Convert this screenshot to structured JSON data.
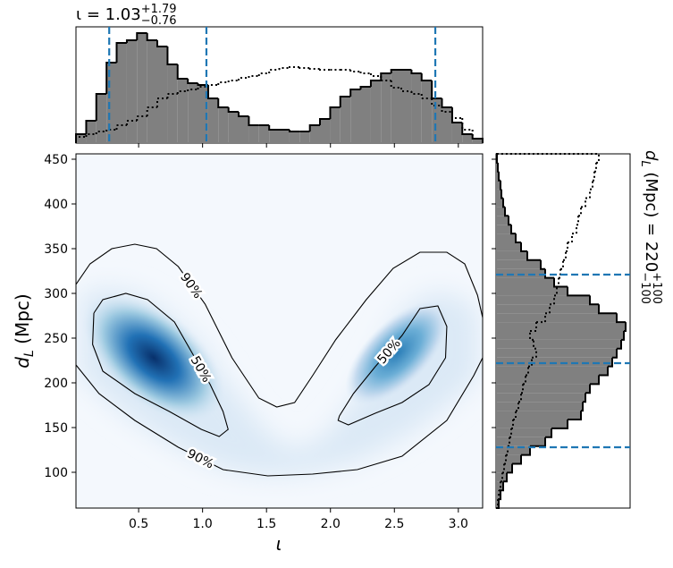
{
  "chart_data": {
    "type": "corner",
    "title": {
      "text": "ι = 1.03",
      "sup": "+1.79",
      "sub": "−0.76"
    },
    "side_title": {
      "text": "d",
      "sub_var": "L",
      "rest": " (Mpc) = 220",
      "sup": "+100",
      "sub": "−100"
    },
    "xlabel": "ι",
    "ylabel": {
      "text": "d",
      "sub": "L",
      "rest": " (Mpc)"
    },
    "xlim": [
      0.01,
      3.19
    ],
    "ylim": [
      60,
      456
    ],
    "xticks": [
      0.5,
      {
        "value": 1,
        "label": "1.0"
      },
      1.5,
      {
        "value": 2,
        "label": "2.0"
      },
      2.5,
      {
        "value": 3,
        "label": "3.0"
      }
    ],
    "yticks": [
      100,
      150,
      200,
      250,
      300,
      350,
      400,
      450
    ],
    "line_color": "#1f77b4",
    "contours": [
      {
        "label": "90%",
        "x": [
          0.01,
          0.12,
          0.29,
          0.47,
          0.64,
          0.81,
          1.02,
          1.23,
          1.44,
          1.58,
          1.72,
          1.86,
          2.04,
          2.28,
          2.49,
          2.7,
          2.91,
          3.05,
          3.15,
          3.19
        ],
        "y": [
          310,
          333,
          350,
          355,
          350,
          330,
          288,
          228,
          183,
          173,
          178,
          208,
          248,
          293,
          328,
          346,
          346,
          333,
          298,
          273
        ]
      },
      {
        "label": "90%",
        "x": [
          0.01,
          0.19,
          0.47,
          0.81,
          1.16,
          1.51,
          1.86,
          2.21,
          2.56,
          2.91,
          3.12,
          3.19
        ],
        "y": [
          220,
          188,
          158,
          128,
          103,
          96,
          98,
          103,
          118,
          158,
          208,
          228
        ]
      },
      {
        "label": "50%",
        "x": [
          0.15,
          0.22,
          0.4,
          0.57,
          0.78,
          0.92,
          1.06,
          1.16,
          1.2,
          1.13,
          0.99,
          0.74,
          0.47,
          0.22,
          0.14,
          0.15
        ],
        "y": [
          278,
          293,
          300,
          293,
          268,
          233,
          198,
          168,
          148,
          140,
          148,
          168,
          188,
          213,
          243,
          278
        ]
      },
      {
        "label": "50%",
        "x": [
          2.07,
          2.18,
          2.35,
          2.56,
          2.7,
          2.84,
          2.91,
          2.9,
          2.77,
          2.56,
          2.35,
          2.14,
          2.06,
          2.07
        ],
        "y": [
          163,
          188,
          218,
          253,
          283,
          286,
          263,
          228,
          198,
          178,
          166,
          153,
          158,
          163
        ]
      }
    ],
    "top_hist": {
      "ylim": [
        0,
        130
      ],
      "color": "#808080",
      "bins": [
        0.01,
        0.09,
        0.169,
        0.249,
        0.328,
        0.408,
        0.487,
        0.567,
        0.646,
        0.726,
        0.805,
        0.885,
        0.964,
        1.044,
        1.123,
        1.203,
        1.282,
        1.362,
        1.441,
        1.521,
        1.6,
        1.68,
        1.759,
        1.839,
        1.918,
        1.998,
        2.077,
        2.157,
        2.236,
        2.316,
        2.395,
        2.475,
        2.554,
        2.634,
        2.713,
        2.793,
        2.872,
        2.952,
        3.031,
        3.111,
        3.19
      ],
      "values": [
        10,
        25,
        55,
        90,
        112,
        115,
        123,
        115,
        108,
        88,
        72,
        67,
        65,
        50,
        40,
        35,
        30,
        20,
        20,
        15,
        15,
        13,
        13,
        20,
        27,
        40,
        52,
        60,
        63,
        70,
        78,
        82,
        82,
        78,
        70,
        50,
        40,
        23,
        10,
        5
      ],
      "dotted": [
        7,
        10,
        13,
        15,
        20,
        25,
        30,
        40,
        50,
        55,
        58,
        60,
        63,
        65,
        68,
        70,
        73,
        75,
        78,
        82,
        84,
        85,
        84,
        83,
        82,
        82,
        82,
        80,
        78,
        75,
        70,
        62,
        58,
        55,
        50,
        42,
        35,
        28,
        15,
        5
      ],
      "quantiles": [
        0.27,
        1.03,
        2.82
      ]
    },
    "right_hist": {
      "xlim": [
        0,
        150
      ],
      "color": "#808080",
      "bins": [
        60,
        69.9,
        79.8,
        89.7,
        99.6,
        109.5,
        119.4,
        129.3,
        139.2,
        149.1,
        159,
        168.9,
        178.8,
        188.7,
        198.6,
        208.5,
        218.4,
        228.3,
        238.2,
        248.1,
        258,
        267.9,
        277.8,
        287.7,
        297.6,
        307.5,
        317.4,
        327.3,
        337.2,
        347.1,
        357,
        366.9,
        376.8,
        386.7,
        396.6,
        406.5,
        416.4,
        426.3,
        436.2,
        446.1,
        456
      ],
      "values": [
        3,
        5,
        8,
        12,
        18,
        28,
        38,
        55,
        62,
        80,
        95,
        97,
        100,
        105,
        115,
        125,
        130,
        135,
        140,
        143,
        145,
        135,
        115,
        105,
        80,
        65,
        55,
        50,
        35,
        28,
        22,
        17,
        14,
        10,
        8,
        6,
        5,
        3,
        2,
        1
      ],
      "dotted": [
        2,
        3,
        5,
        7,
        9,
        11,
        13,
        15,
        17,
        19,
        22,
        25,
        28,
        30,
        33,
        36,
        40,
        45,
        42,
        38,
        45,
        55,
        60,
        65,
        68,
        70,
        72,
        75,
        78,
        80,
        85,
        90,
        92,
        95,
        100,
        105,
        108,
        110,
        112,
        115
      ],
      "quantiles": [
        128,
        222,
        321
      ]
    }
  }
}
